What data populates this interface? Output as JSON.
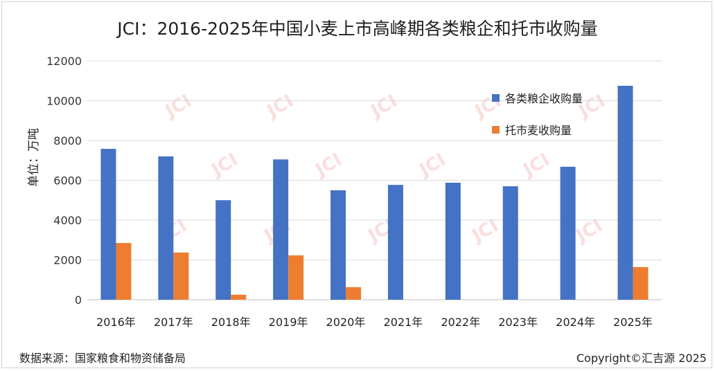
{
  "chart_data": {
    "type": "bar",
    "title": "JCI：2016-2025年中国小麦上市高峰期各类粮企和托市收购量",
    "ylabel": "单位：万吨",
    "xlabel": "",
    "categories": [
      "2016年",
      "2017年",
      "2018年",
      "2019年",
      "2020年",
      "2021年",
      "2022年",
      "2023年",
      "2024年",
      "2025年"
    ],
    "ylim": [
      0,
      12000
    ],
    "yticks": [
      0,
      2000,
      4000,
      6000,
      8000,
      10000,
      12000
    ],
    "series": [
      {
        "name": "各类粮企收购量",
        "color": "#4472c4",
        "values": [
          7580,
          7200,
          5000,
          7050,
          5500,
          5770,
          5880,
          5700,
          6680,
          10750
        ]
      },
      {
        "name": "托市麦收购量",
        "color": "#ed7d31",
        "values": [
          2850,
          2370,
          250,
          2230,
          630,
          0,
          0,
          0,
          0,
          1640
        ]
      }
    ],
    "grid": true,
    "legend_position": "right-inside"
  },
  "footer": {
    "source": "数据来源：国家粮食和物资储备局",
    "copyright": "Copyright©汇吉源 2025"
  },
  "watermark": "JCI"
}
